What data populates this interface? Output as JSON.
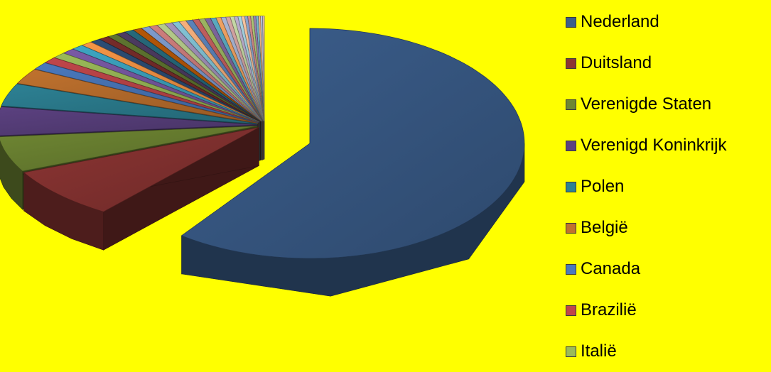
{
  "chart_data": {
    "type": "pie",
    "variant": "3d-exploded",
    "legend_position": "right",
    "series": [
      {
        "name": "Nederland",
        "value": 59.0,
        "color": "#3b5e8c"
      },
      {
        "name": "Duitsland",
        "value": 7.6,
        "color": "#8c3533"
      },
      {
        "name": "Verenigde Staten",
        "value": 5.3,
        "color": "#6f8733"
      },
      {
        "name": "Verenigd Koninkrijk",
        "value": 4.3,
        "color": "#5b4180"
      },
      {
        "name": "Polen",
        "value": 3.4,
        "color": "#2d8194"
      },
      {
        "name": "België",
        "value": 2.3,
        "color": "#c0722e"
      },
      {
        "name": "Canada",
        "value": 1.1,
        "color": "#4a79bd"
      },
      {
        "name": "Brazilië",
        "value": 0.9,
        "color": "#c0464a"
      },
      {
        "name": "Italië",
        "value": 0.85,
        "color": "#9bbb59"
      },
      {
        "name": "",
        "value": 0.8,
        "color": "#7a5aa6"
      },
      {
        "name": "",
        "value": 0.75,
        "color": "#3da6c2"
      },
      {
        "name": "",
        "value": 0.7,
        "color": "#f79646"
      },
      {
        "name": "",
        "value": 0.65,
        "color": "#2c4d75"
      },
      {
        "name": "",
        "value": 0.62,
        "color": "#772c2a"
      },
      {
        "name": "",
        "value": 0.6,
        "color": "#5f7530"
      },
      {
        "name": "",
        "value": 0.58,
        "color": "#4d3b62"
      },
      {
        "name": "",
        "value": 0.56,
        "color": "#276a7c"
      },
      {
        "name": "",
        "value": 0.54,
        "color": "#b65708"
      },
      {
        "name": "",
        "value": 0.52,
        "color": "#7f9ccf"
      },
      {
        "name": "",
        "value": 0.5,
        "color": "#d07f7e"
      },
      {
        "name": "",
        "value": 0.48,
        "color": "#b7cd8b"
      },
      {
        "name": "",
        "value": 0.46,
        "color": "#a493bd"
      },
      {
        "name": "",
        "value": 0.44,
        "color": "#84c5d8"
      },
      {
        "name": "",
        "value": 0.42,
        "color": "#f9b17d"
      },
      {
        "name": "",
        "value": 0.4,
        "color": "#5c84bc"
      },
      {
        "name": "",
        "value": 0.38,
        "color": "#c4605f"
      },
      {
        "name": "",
        "value": 0.36,
        "color": "#9db662"
      },
      {
        "name": "",
        "value": 0.34,
        "color": "#7f67a0"
      },
      {
        "name": "",
        "value": 0.32,
        "color": "#5cabc1"
      },
      {
        "name": "",
        "value": 0.3,
        "color": "#f3a463"
      },
      {
        "name": "",
        "value": 0.28,
        "color": "#aab8d6"
      },
      {
        "name": "",
        "value": 0.26,
        "color": "#d8a7a6"
      },
      {
        "name": "",
        "value": 0.24,
        "color": "#c8dba8"
      },
      {
        "name": "",
        "value": 0.22,
        "color": "#bdb0d0"
      },
      {
        "name": "",
        "value": 0.2,
        "color": "#a8d6e4"
      },
      {
        "name": "",
        "value": 0.19,
        "color": "#fac6a1"
      },
      {
        "name": "",
        "value": 0.18,
        "color": "#8ea6cf"
      },
      {
        "name": "",
        "value": 0.17,
        "color": "#d68c8b"
      },
      {
        "name": "",
        "value": 0.16,
        "color": "#b0c879"
      },
      {
        "name": "",
        "value": 0.15,
        "color": "#9a84b6"
      },
      {
        "name": "",
        "value": 0.14,
        "color": "#77bbcf"
      },
      {
        "name": "",
        "value": 0.13,
        "color": "#f6b988"
      },
      {
        "name": "",
        "value": 0.12,
        "color": "#c3cde3"
      },
      {
        "name": "",
        "value": 0.11,
        "color": "#e6c3c2"
      }
    ],
    "legend_entries": [
      {
        "name": "Nederland",
        "color": "#3b5e8c"
      },
      {
        "name": "Duitsland",
        "color": "#8c3533"
      },
      {
        "name": "Verenigde Staten",
        "color": "#6f8733"
      },
      {
        "name": "Verenigd Koninkrijk",
        "color": "#5b4180"
      },
      {
        "name": "Polen",
        "color": "#2d8194"
      },
      {
        "name": "België",
        "color": "#c0722e"
      },
      {
        "name": "Canada",
        "color": "#4a79bd"
      },
      {
        "name": "Brazilië",
        "color": "#c0464a"
      },
      {
        "name": "Italië",
        "color": "#9bbb59"
      }
    ]
  },
  "colors": {
    "background": "#ffff00"
  }
}
